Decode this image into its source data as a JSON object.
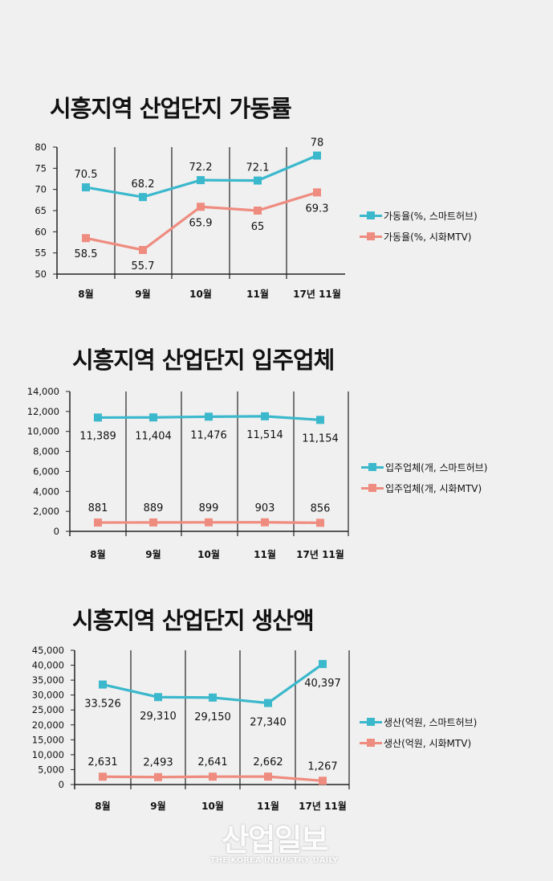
{
  "colors": {
    "smarthub": "#3bb8cc",
    "siwha": "#ef8c80"
  },
  "chart_data": [
    {
      "type": "line",
      "title": "시흥지역 산업단지 가동률",
      "categories": [
        "8월",
        "9월",
        "10월",
        "11월",
        "17년 11월"
      ],
      "yticks": [
        "80",
        "75",
        "70",
        "65",
        "60",
        "55",
        "50"
      ],
      "ylim": [
        50,
        80
      ],
      "series": [
        {
          "name": "가동율(%, 스마트허브)",
          "values": [
            70.5,
            68.2,
            72.2,
            72.1,
            78
          ],
          "labels": [
            "70.5",
            "68.2",
            "72.2",
            "72.1",
            "78"
          ]
        },
        {
          "name": "가동율(%, 시화MTV)",
          "values": [
            58.5,
            55.7,
            65.9,
            65,
            69.3
          ],
          "labels": [
            "58.5",
            "55.7",
            "65.9",
            "65",
            "69.3"
          ]
        }
      ],
      "legend": "right"
    },
    {
      "type": "line",
      "title": "시흥지역 산업단지 입주업체",
      "categories": [
        "8월",
        "9월",
        "10월",
        "11월",
        "17년 11월"
      ],
      "yticks": [
        "14,000",
        "12,000",
        "10,000",
        "8,000",
        "6,000",
        "4,000",
        "2,000",
        "0"
      ],
      "ylim": [
        0,
        14000
      ],
      "series": [
        {
          "name": "입주업체(개, 스마트허브)",
          "values": [
            11389,
            11404,
            11476,
            11514,
            11154
          ],
          "labels": [
            "11,389",
            "11,404",
            "11,476",
            "11,514",
            "11,154"
          ]
        },
        {
          "name": "입주업체(개, 시화MTV)",
          "values": [
            881,
            889,
            899,
            903,
            856
          ],
          "labels": [
            "881",
            "889",
            "899",
            "903",
            "856"
          ]
        }
      ],
      "legend": "right"
    },
    {
      "type": "line",
      "title": "시흥지역 산업단지 생산액",
      "categories": [
        "8월",
        "9월",
        "10월",
        "11월",
        "17년 11월"
      ],
      "yticks": [
        "45,000",
        "40,000",
        "35,000",
        "30,000",
        "25,000",
        "20,000",
        "15,000",
        "10,000",
        "5,000",
        "0"
      ],
      "ylim": [
        0,
        45000
      ],
      "series": [
        {
          "name": "생산(억원, 스마트허브)",
          "values": [
            33526,
            29310,
            29150,
            27340,
            40397
          ],
          "labels": [
            "33.526",
            "29,310",
            "29,150",
            "27,340",
            "40,397"
          ]
        },
        {
          "name": "생산(억원, 시화MTV)",
          "values": [
            2631,
            2493,
            2641,
            2662,
            1267
          ],
          "labels": [
            "2,631",
            "2,493",
            "2,641",
            "2,662",
            "1,267"
          ]
        }
      ],
      "legend": "right"
    }
  ],
  "watermark": {
    "main": "산업일보",
    "sub": "THE KOREA INDUSTRY DAILY"
  }
}
